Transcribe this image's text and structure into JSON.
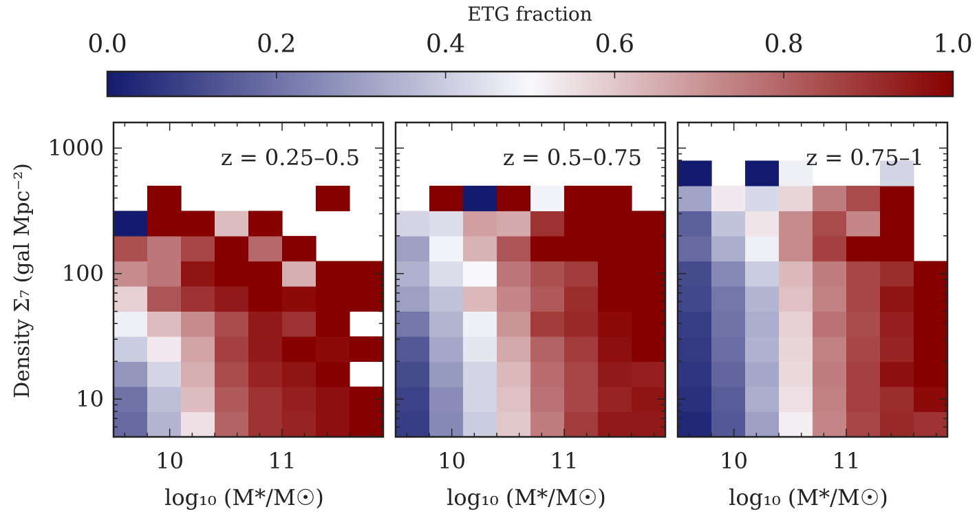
{
  "colorbar": {
    "label": "ETG fraction",
    "ticks": [
      "0.0",
      "0.2",
      "0.4",
      "0.6",
      "0.8",
      "1.0"
    ],
    "range": [
      0,
      1
    ],
    "colormap": {
      "low": "#141a6e",
      "mid": "#f8f8fc",
      "high": "#870000"
    }
  },
  "ylabel": "Density Σ₇ (gal Mpc⁻²)",
  "chart_data": [
    {
      "type": "heatmap",
      "title": "z = 0.25–0.5",
      "xlabel": "log₁₀ (M*/M☉)",
      "ylabel": "Density Σ₇ (gal Mpc⁻²)",
      "x_bin_edges": [
        9.5,
        9.8,
        10.1,
        10.4,
        10.7,
        11.0,
        11.3,
        11.6,
        11.9
      ],
      "x_ticks": [
        "10",
        "11"
      ],
      "y_scale": "log",
      "y_bin_edges_log10": [
        0.7,
        0.9,
        1.1,
        1.3,
        1.5,
        1.7,
        1.9,
        2.1,
        2.3,
        2.5,
        2.7
      ],
      "y_ticks": [
        "10",
        "100",
        "1000"
      ],
      "ylim": [
        5,
        1600
      ],
      "values": [
        [
          0.18,
          0.35,
          0.55,
          0.8,
          0.9,
          0.93,
          0.97,
          1.0
        ],
        [
          0.2,
          0.37,
          0.62,
          0.82,
          0.9,
          0.94,
          0.97,
          1.0
        ],
        [
          0.28,
          0.42,
          0.65,
          0.85,
          0.93,
          0.96,
          1.0,
          null
        ],
        [
          0.4,
          0.53,
          0.67,
          0.87,
          0.95,
          1.0,
          0.98,
          1.0
        ],
        [
          0.48,
          0.62,
          0.72,
          0.85,
          0.95,
          0.9,
          1.0,
          null
        ],
        [
          0.58,
          0.83,
          0.9,
          0.95,
          1.0,
          0.98,
          1.0,
          1.0
        ],
        [
          0.72,
          0.76,
          0.96,
          1.0,
          1.0,
          0.65,
          1.0,
          1.0
        ],
        [
          0.84,
          0.76,
          0.86,
          1.0,
          0.79,
          1.0,
          null,
          null
        ],
        [
          0.0,
          1.0,
          1.0,
          0.62,
          1.0,
          null,
          null,
          null
        ],
        [
          null,
          1.0,
          null,
          null,
          null,
          null,
          1.0,
          null
        ]
      ]
    },
    {
      "type": "heatmap",
      "title": "z = 0.5–0.75",
      "xlabel": "log₁₀ (M*/M☉)",
      "ylabel": "",
      "x_bin_edges": [
        9.5,
        9.8,
        10.1,
        10.4,
        10.7,
        11.0,
        11.3,
        11.6,
        11.9
      ],
      "x_ticks": [
        "10",
        "11"
      ],
      "y_scale": "log",
      "y_bin_edges_log10": [
        0.7,
        0.9,
        1.1,
        1.3,
        1.5,
        1.7,
        1.9,
        2.1,
        2.3,
        2.5,
        2.7
      ],
      "y_ticks": [
        "10",
        "100",
        "1000"
      ],
      "ylim": [
        5,
        1600
      ],
      "values": [
        [
          0.08,
          0.25,
          0.4,
          0.6,
          0.75,
          0.88,
          0.95,
          0.95
        ],
        [
          0.09,
          0.26,
          0.42,
          0.61,
          0.77,
          0.86,
          0.93,
          0.96
        ],
        [
          0.11,
          0.29,
          0.42,
          0.63,
          0.78,
          0.86,
          0.95,
          0.94
        ],
        [
          0.14,
          0.32,
          0.46,
          0.66,
          0.8,
          0.88,
          0.97,
          1.0
        ],
        [
          0.21,
          0.35,
          0.48,
          0.7,
          0.88,
          0.92,
          0.98,
          1.0
        ],
        [
          0.3,
          0.38,
          0.63,
          0.73,
          0.82,
          0.91,
          1.0,
          1.0
        ],
        [
          0.34,
          0.44,
          0.5,
          0.76,
          0.84,
          0.88,
          1.0,
          1.0
        ],
        [
          0.3,
          0.49,
          0.64,
          0.83,
          1.0,
          1.0,
          1.0,
          1.0
        ],
        [
          0.42,
          0.44,
          0.68,
          0.66,
          0.9,
          1.0,
          1.0,
          1.0
        ],
        [
          null,
          1.0,
          0.0,
          1.0,
          0.49,
          1.0,
          1.0,
          null
        ]
      ]
    },
    {
      "type": "heatmap",
      "title": "z = 0.75–1",
      "xlabel": "log₁₀ (M*/M☉)",
      "ylabel": "",
      "x_bin_edges": [
        9.5,
        9.8,
        10.1,
        10.4,
        10.7,
        11.0,
        11.3,
        11.6,
        11.9
      ],
      "x_ticks": [
        "10",
        "11"
      ],
      "y_scale": "log",
      "y_bin_edges_log10": [
        0.7,
        0.9,
        1.1,
        1.3,
        1.5,
        1.7,
        1.9,
        2.1,
        2.3,
        2.5,
        2.7
      ],
      "y_ticks": [
        "10",
        "100",
        "1000"
      ],
      "ylim": [
        5,
        1600
      ],
      "values": [
        [
          0.03,
          0.14,
          0.3,
          0.52,
          0.73,
          0.86,
          0.92,
          0.9
        ],
        [
          0.05,
          0.15,
          0.33,
          0.55,
          0.74,
          0.87,
          0.91,
          0.98
        ],
        [
          0.06,
          0.17,
          0.32,
          0.56,
          0.75,
          0.87,
          0.97,
          1.0
        ],
        [
          0.07,
          0.19,
          0.34,
          0.57,
          0.74,
          0.86,
          0.93,
          1.0
        ],
        [
          0.08,
          0.2,
          0.33,
          0.58,
          0.77,
          0.85,
          0.94,
          1.0
        ],
        [
          0.1,
          0.21,
          0.35,
          0.61,
          0.74,
          0.86,
          0.96,
          1.0
        ],
        [
          0.11,
          0.25,
          0.4,
          0.63,
          0.75,
          0.86,
          0.91,
          1.0
        ],
        [
          0.18,
          0.33,
          0.48,
          0.72,
          0.87,
          1.0,
          1.0,
          null
        ],
        [
          0.16,
          0.38,
          0.54,
          0.72,
          0.85,
          0.73,
          1.0,
          null
        ],
        [
          0.31,
          0.53,
          0.43,
          0.57,
          0.75,
          0.85,
          1.0,
          null
        ],
        [
          0.0,
          null,
          0.0,
          0.48,
          null,
          null,
          0.42,
          null
        ]
      ],
      "y_bin_edges_log10_top_extra": 2.9
    }
  ]
}
